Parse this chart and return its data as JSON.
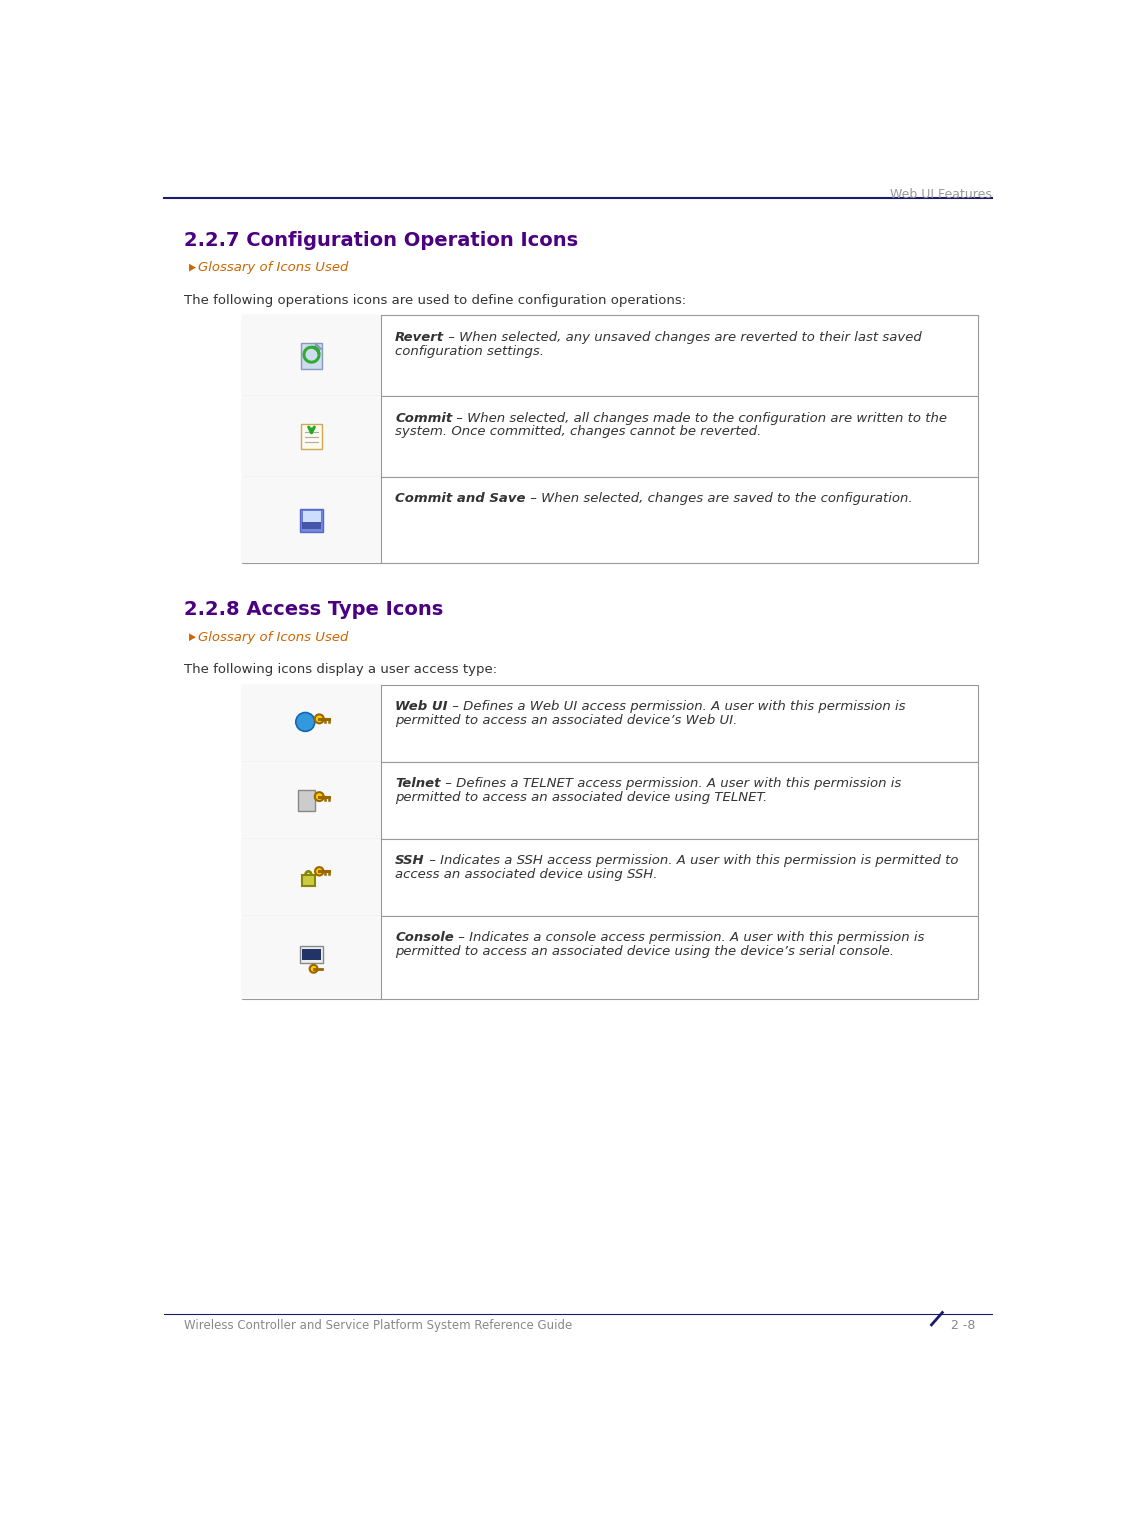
{
  "page_title": "Web UI Features",
  "header_line_color": "#1a1a6e",
  "bg_color": "#ffffff",
  "section1_title": "2.2.7 Configuration Operation Icons",
  "section1_title_color": "#4b0082",
  "glossary_label": "Glossary of Icons Used",
  "glossary_color": "#cc6600",
  "section1_intro": "The following operations icons are used to define configuration operations:",
  "section1_rows": [
    {
      "bold_text": "Revert",
      "description": " – When selected, any unsaved changes are reverted to their last saved\nconfiguration settings."
    },
    {
      "bold_text": "Commit",
      "description": " – When selected, all changes made to the configuration are written to the\nsystem. Once committed, changes cannot be reverted."
    },
    {
      "bold_text": "Commit and Save",
      "description": " – When selected, changes are saved to the configuration."
    }
  ],
  "section2_title": "2.2.8 Access Type Icons",
  "section2_title_color": "#4b0082",
  "section2_intro": "The following icons display a user access type:",
  "section2_rows": [
    {
      "bold_text": "Web UI",
      "description": " – Defines a Web UI access permission. A user with this permission is\npermitted to access an associated device’s Web UI."
    },
    {
      "bold_text": "Telnet",
      "description": " – Defines a TELNET access permission. A user with this permission is\npermitted to access an associated device using TELNET."
    },
    {
      "bold_text": "SSH",
      "description": " – Indicates a SSH access permission. A user with this permission is permitted to\naccess an associated device using SSH."
    },
    {
      "bold_text": "Console",
      "description": " – Indicates a console access permission. A user with this permission is\npermitted to access an associated device using the device’s serial console."
    }
  ],
  "footer_left": "Wireless Controller and Service Platform System Reference Guide",
  "footer_right": "2 -8",
  "footer_line_color": "#1a1a6e",
  "text_color": "#333333",
  "table_border_color": "#999999",
  "body_font_size": 9.5,
  "title_font_size": 14
}
